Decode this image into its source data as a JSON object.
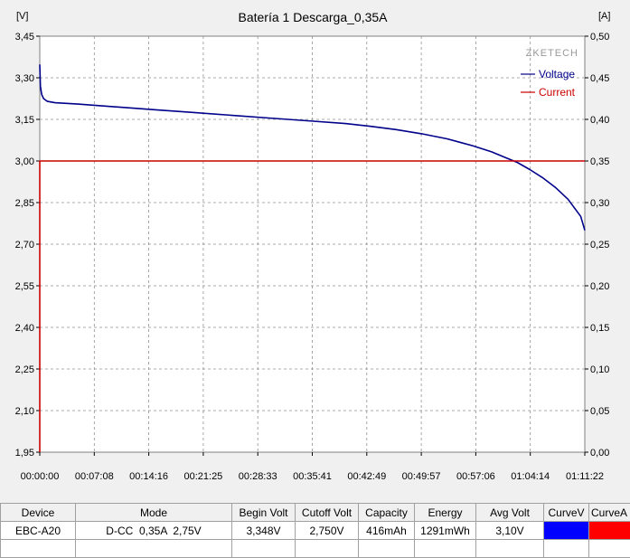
{
  "chart_data": {
    "type": "line",
    "title": "Batería 1 Descarga_0,35A",
    "brand": "ZKETECH",
    "y_left_unit": "[V]",
    "y_right_unit": "[A]",
    "y_left_ticks": [
      "1,95",
      "2,10",
      "2,25",
      "2,40",
      "2,55",
      "2,70",
      "2,85",
      "3,00",
      "3,15",
      "3,30",
      "3,45"
    ],
    "y_right_ticks": [
      "0,00",
      "0,05",
      "0,10",
      "0,15",
      "0,20",
      "0,25",
      "0,30",
      "0,35",
      "0,40",
      "0,45",
      "0,50"
    ],
    "x_ticks": [
      "00:00:00",
      "00:07:08",
      "00:14:16",
      "00:21:25",
      "00:28:33",
      "00:35:41",
      "00:42:49",
      "00:49:57",
      "00:57:06",
      "01:04:14",
      "01:11:22"
    ],
    "x_range_seconds": [
      0,
      4282
    ],
    "y_left_range": [
      1.95,
      3.45
    ],
    "y_right_range": [
      0,
      0.5
    ],
    "grid": true,
    "legend_position": "top-right",
    "series": [
      {
        "name": "Voltage",
        "axis": "left",
        "color": "#00008b",
        "x_seconds": [
          0,
          5,
          15,
          30,
          60,
          120,
          300,
          600,
          900,
          1200,
          1500,
          1800,
          2100,
          2400,
          2600,
          2800,
          3000,
          3200,
          3400,
          3550,
          3650,
          3750,
          3850,
          3950,
          4050,
          4150,
          4250,
          4282
        ],
        "values": [
          3.348,
          3.27,
          3.24,
          3.225,
          3.215,
          3.21,
          3.205,
          3.195,
          3.185,
          3.175,
          3.165,
          3.155,
          3.145,
          3.135,
          3.125,
          3.113,
          3.098,
          3.08,
          3.055,
          3.033,
          3.014,
          2.995,
          2.969,
          2.94,
          2.905,
          2.862,
          2.8,
          2.75
        ]
      },
      {
        "name": "Current",
        "axis": "right",
        "color": "#cc0000",
        "x_seconds": [
          0,
          0,
          4282
        ],
        "values": [
          0,
          0.35,
          0.35
        ]
      }
    ]
  },
  "table": {
    "headers": [
      "Device",
      "Mode",
      "Begin Volt",
      "Cutoff Volt",
      "Capacity",
      "Energy",
      "Avg Volt",
      "CurveV",
      "CurveA"
    ],
    "row": [
      "EBC-A20",
      "D-CC  0,35A  2,75V",
      "3,348V",
      "2,750V",
      "416mAh",
      "1291mWh",
      "3,10V"
    ],
    "curve_colors": [
      "#0000ff",
      "#ff0000"
    ]
  }
}
